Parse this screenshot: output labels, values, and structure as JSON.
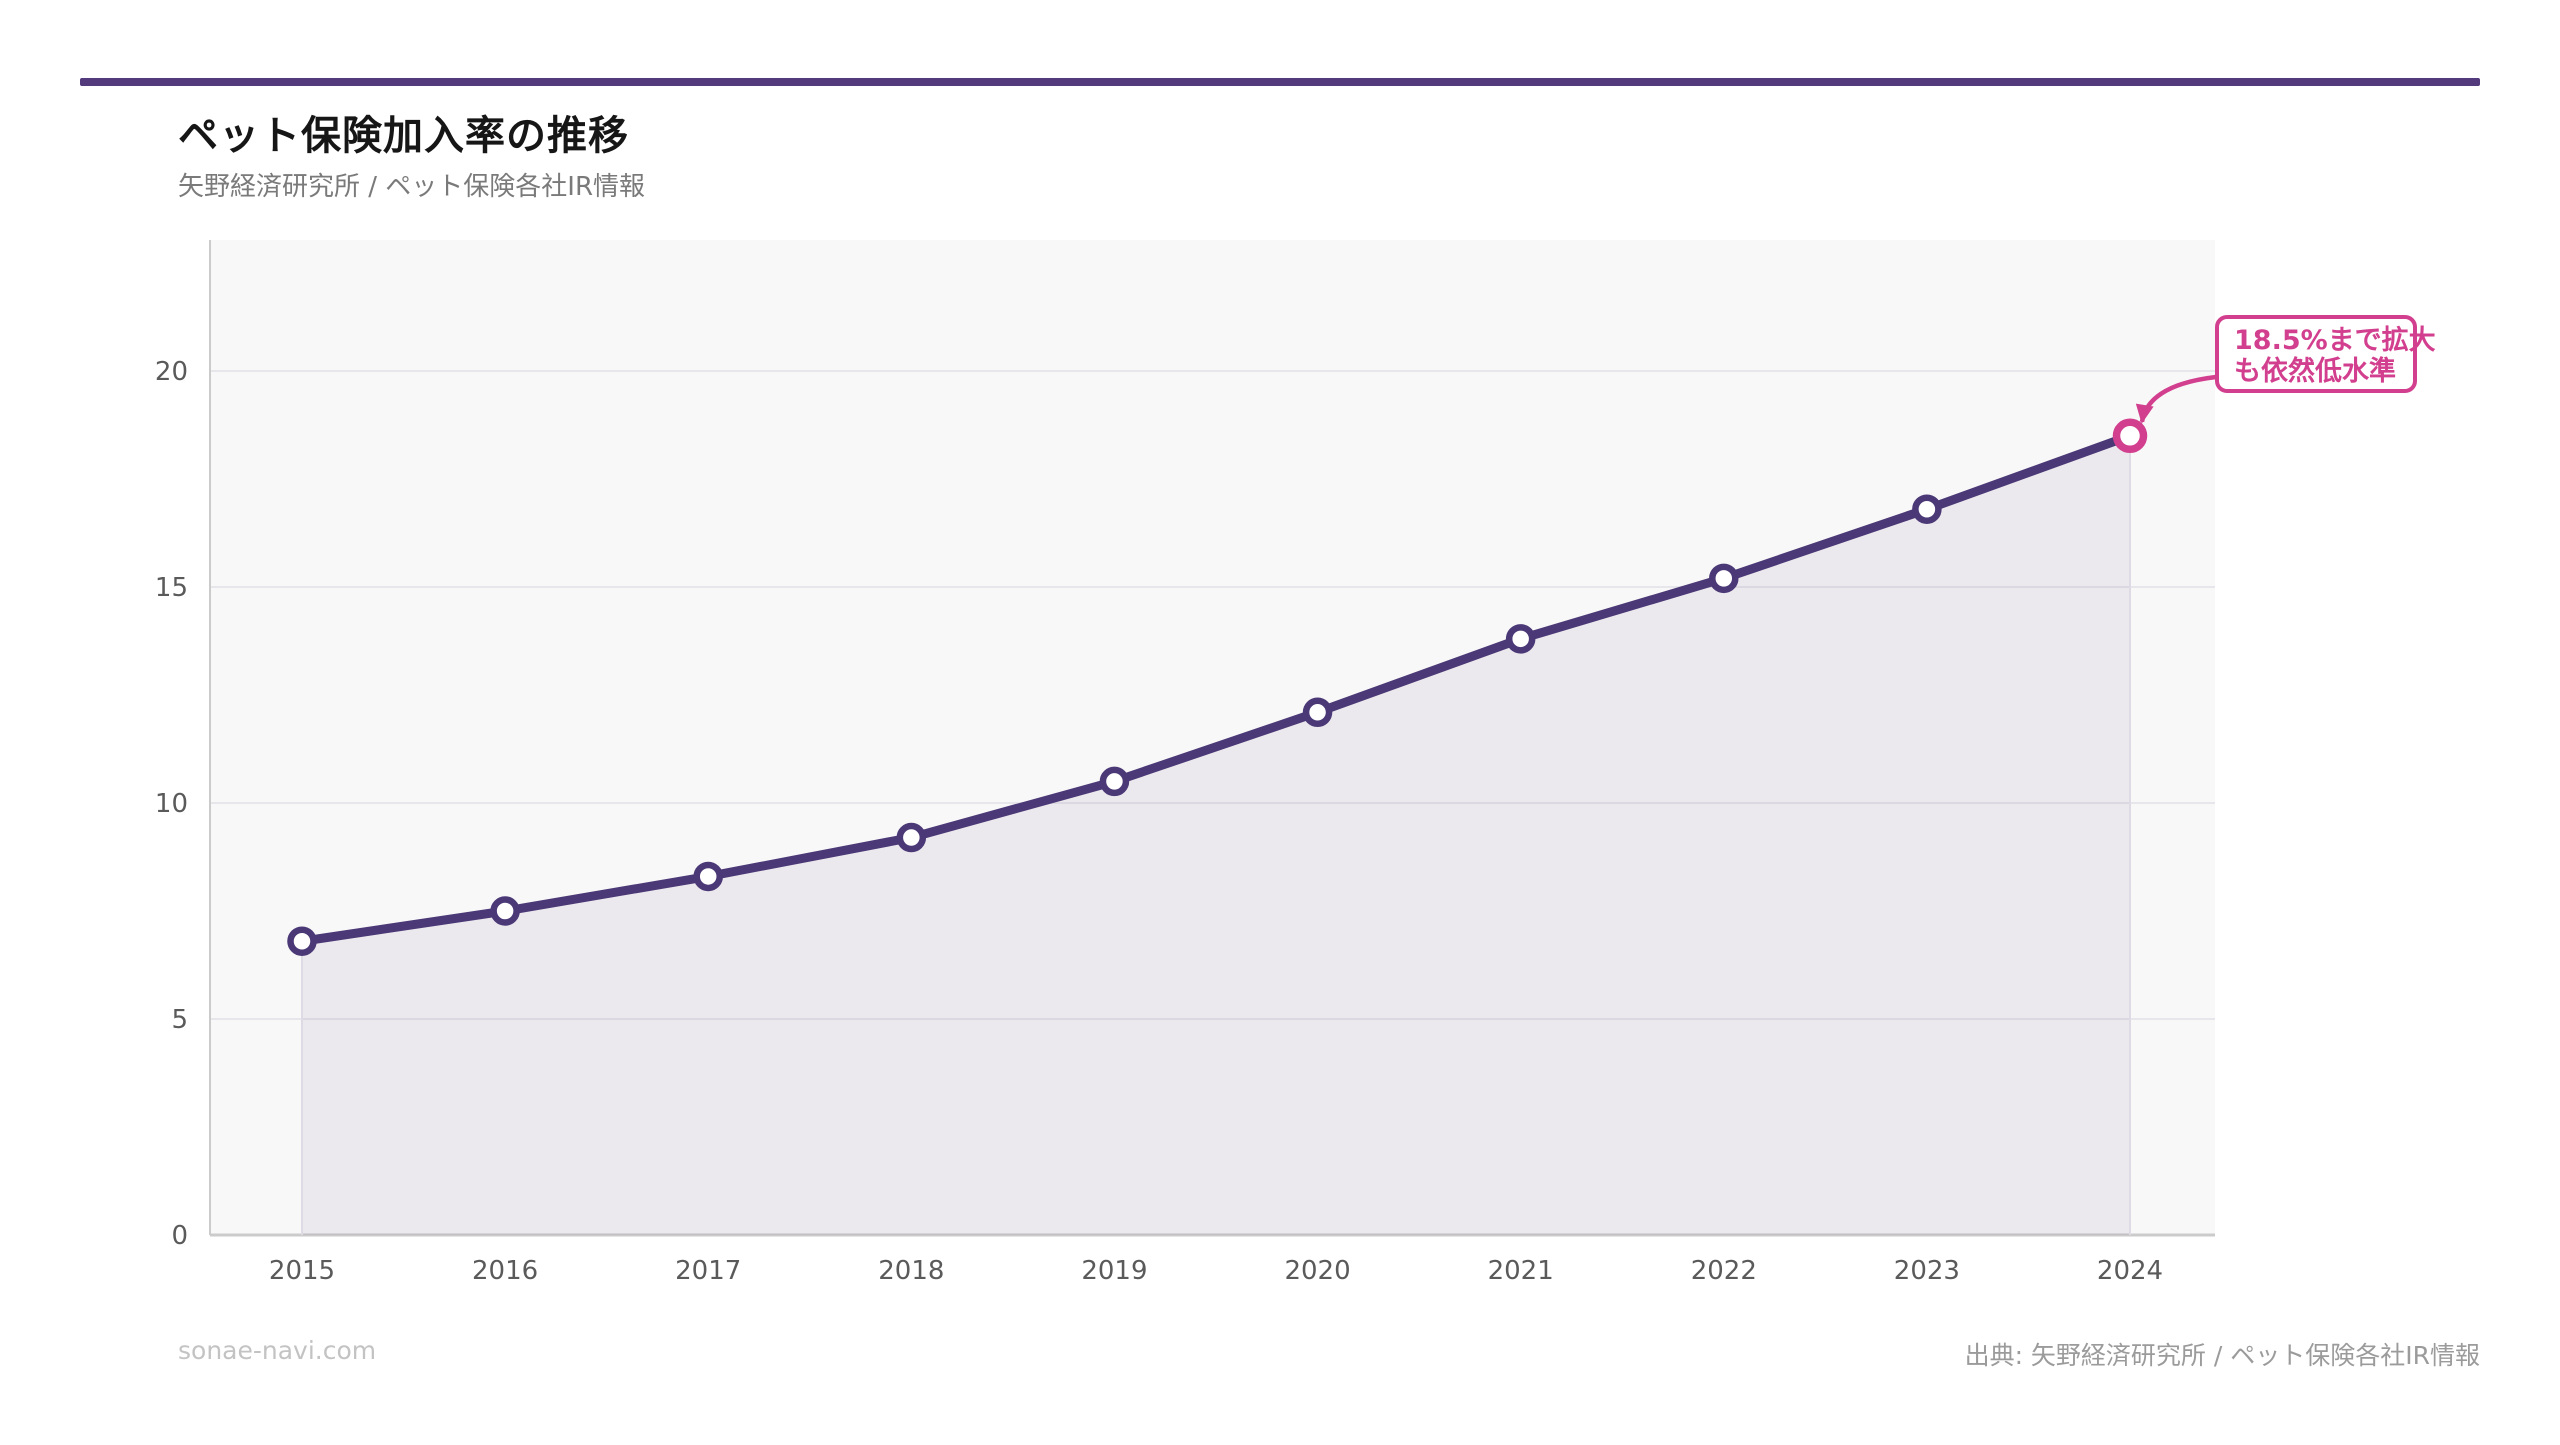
{
  "header": {
    "title": "ペット保険加入率の推移",
    "subtitle": "矢野経済研究所 / ペット保険各社IR情報"
  },
  "footer": {
    "left": "sonae-navi.com",
    "right": "出典: 矢野経済研究所 / ペット保険各社IR情報"
  },
  "colors": {
    "brand_bar": "#533a7d",
    "line": "#4b3876",
    "accent_pink": "#d23f8e",
    "plot_background": "#f8f8f8",
    "gridline": "#e7e6ea",
    "axis": "#cbcbcb",
    "area_fill": "rgba(83,57,125,0.075)",
    "area_edge": "#dedbe4",
    "tick_label": "#5a5a5a"
  },
  "chart_data": {
    "type": "line",
    "title": "ペット保険加入率の推移",
    "xlabel": "",
    "ylabel": "",
    "unit": "%",
    "categories": [
      "2015",
      "2016",
      "2017",
      "2018",
      "2019",
      "2020",
      "2021",
      "2022",
      "2023",
      "2024"
    ],
    "series": [
      {
        "name": "ペット保険加入率",
        "values": [
          6.8,
          7.5,
          8.3,
          9.2,
          10.5,
          12.1,
          13.8,
          15.2,
          16.8,
          18.5
        ]
      }
    ],
    "ylim": [
      0,
      23
    ],
    "yticks": [
      0,
      5,
      10,
      15,
      20
    ],
    "grid": "horizontal only",
    "legend_position": "none",
    "area_under_line": true,
    "highlight": {
      "category": "2024",
      "value": 18.5,
      "annotation_lines": [
        "18.5%まで拡大",
        "も依然低水準"
      ]
    }
  }
}
